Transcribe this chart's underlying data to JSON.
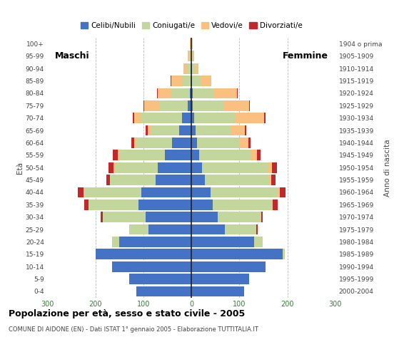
{
  "age_groups": [
    "0-4",
    "5-9",
    "10-14",
    "15-19",
    "20-24",
    "25-29",
    "30-34",
    "35-39",
    "40-44",
    "45-49",
    "50-54",
    "55-59",
    "60-64",
    "65-69",
    "70-74",
    "75-79",
    "80-84",
    "85-89",
    "90-94",
    "95-99",
    "100+"
  ],
  "birth_years": [
    "2000-2004",
    "1995-1999",
    "1990-1994",
    "1985-1989",
    "1980-1984",
    "1975-1979",
    "1970-1974",
    "1965-1969",
    "1960-1964",
    "1955-1959",
    "1950-1954",
    "1945-1949",
    "1940-1944",
    "1935-1939",
    "1930-1934",
    "1925-1929",
    "1920-1924",
    "1915-1919",
    "1910-1914",
    "1905-1909",
    "1904 o prima"
  ],
  "males": {
    "celibinubili": [
      115,
      130,
      165,
      200,
      150,
      90,
      95,
      110,
      105,
      75,
      70,
      55,
      40,
      25,
      20,
      8,
      3,
      2,
      1,
      0,
      0
    ],
    "coniugati": [
      0,
      0,
      0,
      0,
      15,
      40,
      90,
      105,
      120,
      95,
      90,
      95,
      75,
      60,
      85,
      60,
      40,
      18,
      8,
      4,
      1
    ],
    "vedovi": [
      0,
      0,
      0,
      0,
      0,
      0,
      0,
      0,
      0,
      0,
      3,
      4,
      5,
      6,
      14,
      30,
      28,
      22,
      8,
      4,
      2
    ],
    "divorziati": [
      0,
      0,
      0,
      0,
      0,
      0,
      4,
      8,
      12,
      8,
      10,
      10,
      5,
      4,
      4,
      2,
      1,
      1,
      0,
      0,
      0
    ]
  },
  "females": {
    "celibinubili": [
      110,
      120,
      155,
      190,
      130,
      70,
      55,
      45,
      40,
      28,
      22,
      16,
      12,
      8,
      6,
      3,
      2,
      1,
      1,
      0,
      0
    ],
    "coniugate": [
      0,
      0,
      0,
      5,
      18,
      65,
      90,
      125,
      140,
      135,
      138,
      108,
      88,
      75,
      85,
      65,
      45,
      18,
      6,
      2,
      1
    ],
    "vedove": [
      0,
      0,
      0,
      0,
      0,
      0,
      0,
      0,
      4,
      4,
      8,
      12,
      18,
      28,
      60,
      52,
      48,
      22,
      8,
      4,
      2
    ],
    "divorziate": [
      0,
      0,
      0,
      0,
      0,
      3,
      3,
      10,
      12,
      8,
      10,
      8,
      5,
      3,
      4,
      2,
      1,
      1,
      0,
      0,
      0
    ]
  },
  "colors": {
    "celibinubili": "#4472c4",
    "coniugati": "#c3d69b",
    "vedovi": "#fac080",
    "divorziati": "#c0282c"
  },
  "legend_labels": [
    "Celibi/Nubili",
    "Coniugati/e",
    "Vedovi/e",
    "Divorziati/e"
  ],
  "xlim": 300,
  "title": "Popolazione per età, sesso e stato civile - 2005",
  "subtitle": "COMUNE DI AIDONE (EN) - Dati ISTAT 1° gennaio 2005 - Elaborazione TUTTITALIA.IT",
  "ylabel_left": "Maschi",
  "ylabel_right": "Femmine",
  "xlabel_age": "Età",
  "xlabel_birth": "Anno di nascita",
  "axis_label_color": "#3a7a3a",
  "bar_height": 0.85
}
